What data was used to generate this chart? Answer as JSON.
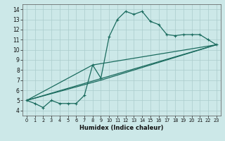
{
  "xlabel": "Humidex (Indice chaleur)",
  "bg_color": "#cce8e8",
  "line_color": "#1a6b5e",
  "grid_color": "#aacccc",
  "xlim": [
    -0.5,
    23.5
  ],
  "ylim": [
    3.5,
    14.5
  ],
  "xticks": [
    0,
    1,
    2,
    3,
    4,
    5,
    6,
    7,
    8,
    9,
    10,
    11,
    12,
    13,
    14,
    15,
    16,
    17,
    18,
    19,
    20,
    21,
    22,
    23
  ],
  "yticks": [
    4,
    5,
    6,
    7,
    8,
    9,
    10,
    11,
    12,
    13,
    14
  ],
  "line1_x": [
    0,
    1,
    2,
    3,
    4,
    5,
    6,
    7,
    8,
    9,
    10,
    11,
    12,
    13,
    14,
    15,
    16,
    17,
    18,
    19,
    20,
    21,
    22,
    23
  ],
  "line1_y": [
    5.0,
    4.7,
    4.3,
    5.0,
    4.7,
    4.7,
    4.7,
    5.5,
    8.5,
    7.2,
    11.3,
    13.0,
    13.8,
    13.5,
    13.8,
    12.8,
    12.5,
    11.5,
    11.4,
    11.5,
    11.5,
    11.5,
    11.0,
    10.5
  ],
  "line2_x": [
    0,
    23
  ],
  "line2_y": [
    5.0,
    10.5
  ],
  "line3_x": [
    0,
    9,
    23
  ],
  "line3_y": [
    5.0,
    7.0,
    10.5
  ],
  "line4_x": [
    0,
    8,
    23
  ],
  "line4_y": [
    5.0,
    8.5,
    10.5
  ],
  "xlabel_fontsize": 6.0,
  "tick_fontsize_x": 4.8,
  "tick_fontsize_y": 5.5,
  "lw": 0.9,
  "marker_size": 3.0
}
